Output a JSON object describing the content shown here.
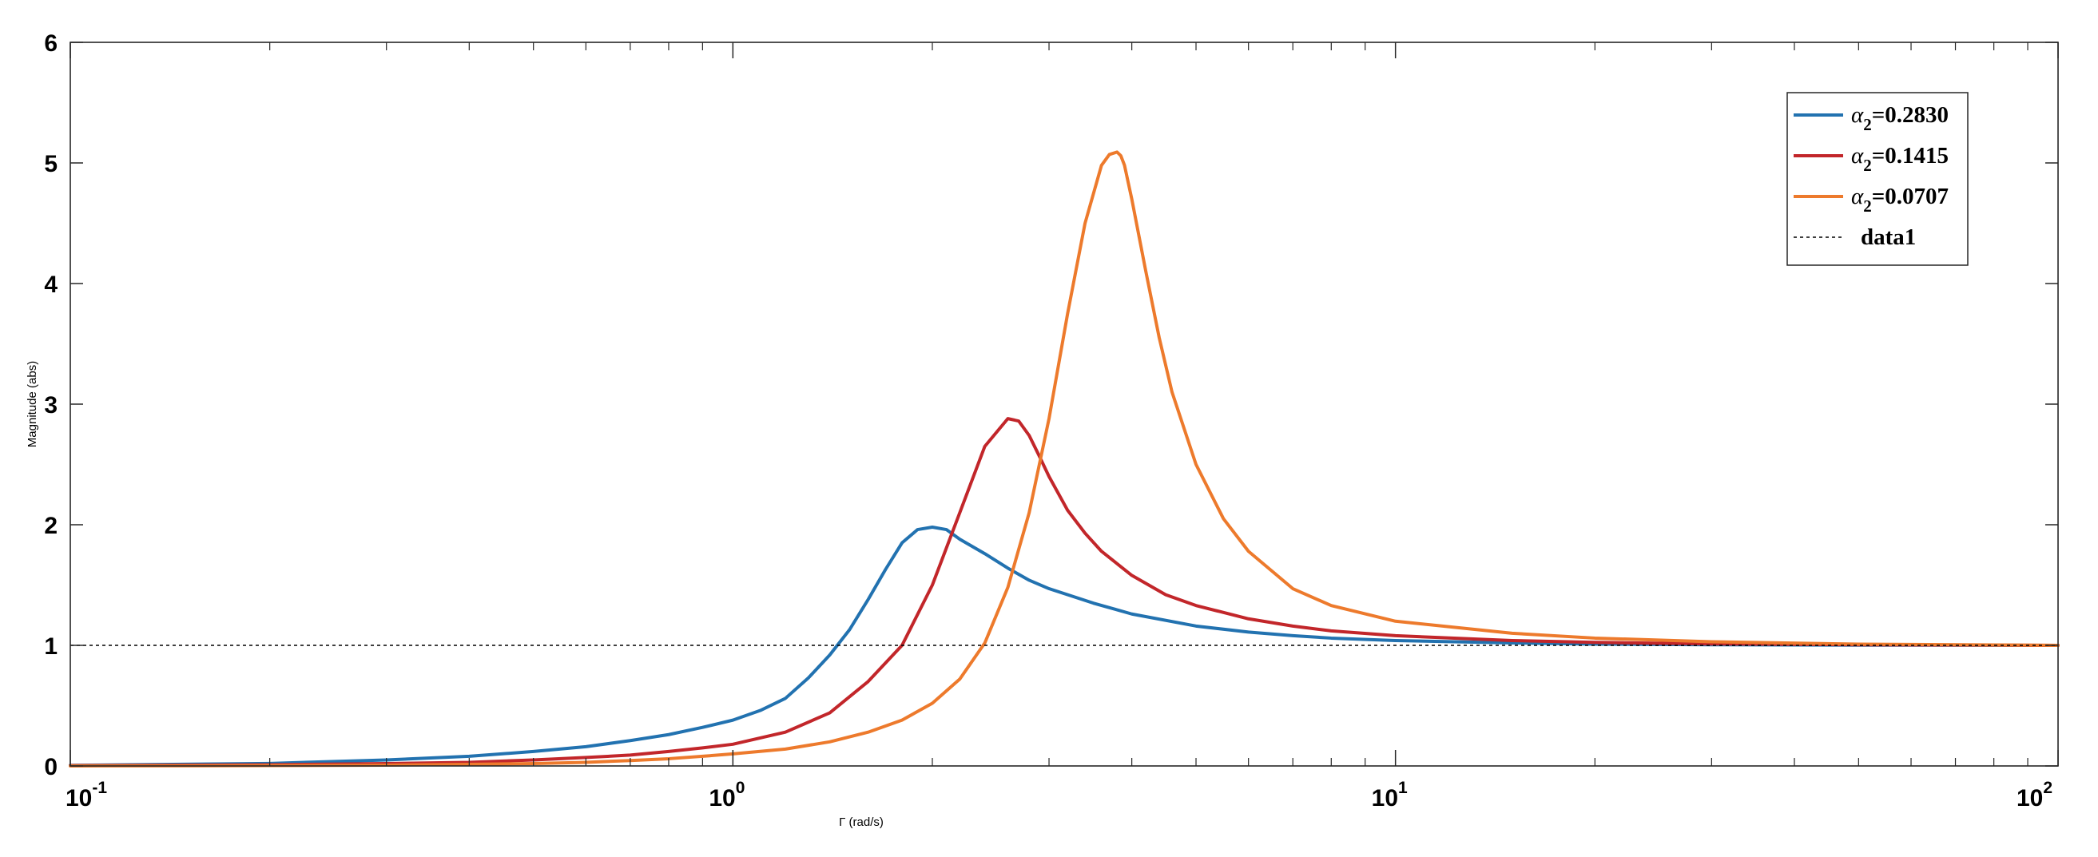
{
  "chart_data": {
    "type": "line",
    "xscale": "log",
    "xlim": [
      0.1,
      100
    ],
    "ylim": [
      0,
      6
    ],
    "xlabel": "Γ  (rad/s)",
    "ylabel": "Magnitude (abs)",
    "title": "",
    "grid": false,
    "legend_position": "top-right",
    "yticks": [
      "0",
      "1",
      "2",
      "3",
      "4",
      "5",
      "6"
    ],
    "xticks": [
      {
        "value": 0.1,
        "base": "10",
        "exp": "-1"
      },
      {
        "value": 1,
        "base": "10",
        "exp": "0"
      },
      {
        "value": 10,
        "base": "10",
        "exp": "1"
      },
      {
        "value": 100,
        "base": "10",
        "exp": "2"
      }
    ],
    "series": [
      {
        "name": "α2=0.2830",
        "legend_symbol": "α",
        "legend_sub": "2",
        "legend_value": "=0.2830",
        "color": "#2272B0",
        "style": "solid",
        "x": [
          0.1,
          0.2,
          0.3,
          0.4,
          0.5,
          0.6,
          0.7,
          0.8,
          0.9,
          1.0,
          1.1,
          1.2,
          1.3,
          1.4,
          1.5,
          1.6,
          1.7,
          1.8,
          1.9,
          2.0,
          2.1,
          2.2,
          2.4,
          2.6,
          2.8,
          3.0,
          3.5,
          4.0,
          5.0,
          6.0,
          7.0,
          8.0,
          10,
          15,
          20,
          30,
          50,
          100
        ],
        "y": [
          0.005,
          0.021,
          0.05,
          0.08,
          0.12,
          0.16,
          0.21,
          0.26,
          0.32,
          0.38,
          0.46,
          0.56,
          0.73,
          0.92,
          1.13,
          1.38,
          1.63,
          1.85,
          1.96,
          1.98,
          1.96,
          1.88,
          1.76,
          1.64,
          1.54,
          1.47,
          1.35,
          1.26,
          1.16,
          1.11,
          1.08,
          1.06,
          1.04,
          1.02,
          1.01,
          1.005,
          1.002,
          1.0
        ]
      },
      {
        "name": "α2=0.1415",
        "legend_symbol": "α",
        "legend_sub": "2",
        "legend_value": "=0.1415",
        "color": "#C2262A",
        "style": "solid",
        "x": [
          0.1,
          0.2,
          0.3,
          0.4,
          0.5,
          0.6,
          0.7,
          0.8,
          0.9,
          1.0,
          1.2,
          1.4,
          1.6,
          1.8,
          2.0,
          2.2,
          2.4,
          2.6,
          2.7,
          2.8,
          2.9,
          3.0,
          3.2,
          3.4,
          3.6,
          4.0,
          4.5,
          5.0,
          6.0,
          7.0,
          8.0,
          10,
          15,
          20,
          30,
          50,
          100
        ],
        "y": [
          0.003,
          0.01,
          0.02,
          0.03,
          0.05,
          0.07,
          0.09,
          0.12,
          0.15,
          0.18,
          0.28,
          0.44,
          0.7,
          1.0,
          1.5,
          2.1,
          2.65,
          2.88,
          2.86,
          2.74,
          2.57,
          2.4,
          2.12,
          1.93,
          1.78,
          1.58,
          1.42,
          1.33,
          1.22,
          1.16,
          1.12,
          1.08,
          1.04,
          1.025,
          1.012,
          1.005,
          1.0
        ]
      },
      {
        "name": "α2=0.0707",
        "legend_symbol": "α",
        "legend_sub": "2",
        "legend_value": "=0.0707",
        "color": "#ED7A2C",
        "style": "solid",
        "x": [
          0.1,
          0.2,
          0.3,
          0.4,
          0.5,
          0.6,
          0.7,
          0.8,
          0.9,
          1.0,
          1.2,
          1.4,
          1.6,
          1.8,
          2.0,
          2.2,
          2.4,
          2.6,
          2.8,
          3.0,
          3.2,
          3.4,
          3.6,
          3.7,
          3.8,
          3.85,
          3.9,
          4.0,
          4.2,
          4.4,
          4.6,
          5.0,
          5.5,
          6.0,
          7.0,
          8.0,
          10,
          15,
          20,
          30,
          50,
          100
        ],
        "y": [
          0.0,
          0.003,
          0.007,
          0.013,
          0.02,
          0.03,
          0.045,
          0.06,
          0.08,
          0.1,
          0.14,
          0.2,
          0.28,
          0.38,
          0.52,
          0.72,
          1.02,
          1.48,
          2.1,
          2.88,
          3.75,
          4.5,
          4.98,
          5.07,
          5.09,
          5.06,
          4.98,
          4.7,
          4.1,
          3.55,
          3.1,
          2.5,
          2.05,
          1.78,
          1.47,
          1.33,
          1.2,
          1.1,
          1.06,
          1.03,
          1.01,
          1.0
        ]
      },
      {
        "name": "data1",
        "legend_value": "data1",
        "color": "#000000",
        "style": "dotted",
        "x": [
          0.1,
          100
        ],
        "y": [
          1,
          1
        ]
      }
    ]
  }
}
